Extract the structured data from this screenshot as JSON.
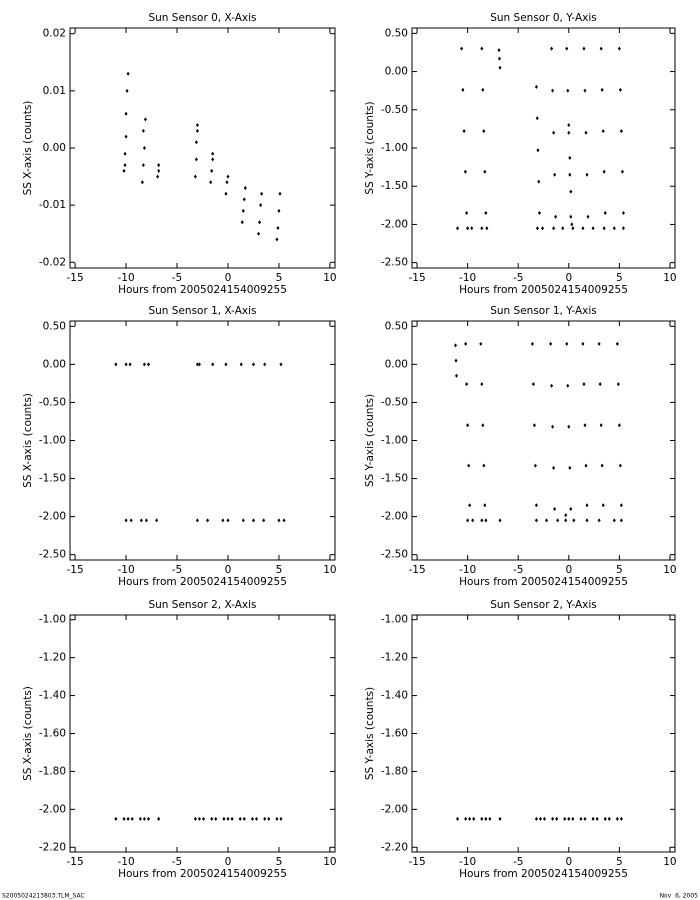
{
  "chart_data": [
    {
      "type": "scatter",
      "title": "Sun Sensor 0, X-Axis",
      "xlabel": "Hours from 2005024154009255",
      "ylabel": "SS X-axis (counts)",
      "color": "#000000",
      "xlim": [
        -15.5,
        10.5
      ],
      "ylim": [
        -0.021,
        0.021
      ],
      "xticks": [
        -15,
        -10,
        -5,
        0,
        5,
        10
      ],
      "yticks": [
        -0.02,
        -0.01,
        {
          "value": 0,
          "label": "0.00"
        },
        0.01,
        0.02
      ],
      "x": [
        -10.2,
        -10.1,
        -10.0,
        -10.0,
        -9.9,
        -9.8,
        -10.1,
        -8.4,
        -8.3,
        -8.2,
        -8.3,
        -8.1,
        -6.9,
        -6.8,
        -6.8,
        -3.2,
        -3.1,
        -3.1,
        -3.0,
        -3.0,
        -1.7,
        -1.6,
        -1.5,
        -1.5,
        -0.2,
        -0.1,
        0.0,
        1.4,
        1.5,
        1.6,
        1.7,
        3.0,
        3.1,
        3.2,
        3.3,
        4.8,
        4.9,
        5.0,
        5.1
      ],
      "y": [
        -0.004,
        -0.001,
        0.002,
        0.006,
        0.01,
        0.013,
        -0.003,
        -0.006,
        -0.003,
        0.0,
        0.003,
        0.005,
        -0.005,
        -0.004,
        -0.003,
        -0.005,
        -0.002,
        0.001,
        0.003,
        0.004,
        -0.006,
        -0.004,
        -0.002,
        -0.001,
        -0.008,
        -0.006,
        -0.005,
        -0.013,
        -0.011,
        -0.009,
        -0.007,
        -0.015,
        -0.013,
        -0.01,
        -0.008,
        -0.016,
        -0.014,
        -0.011,
        -0.008
      ]
    },
    {
      "type": "scatter",
      "title": "Sun Sensor 0, Y-Axis",
      "xlabel": "Hours from 2005024154009255",
      "ylabel": "SS Y-axis (counts)",
      "color": "#000000",
      "xlim": [
        -15.5,
        10.5
      ],
      "ylim": [
        -2.57,
        0.57
      ],
      "xticks": [
        -15,
        -10,
        -5,
        0,
        5,
        10
      ],
      "yticks": [
        {
          "value": -2.5,
          "label": "-2.50"
        },
        {
          "value": -2,
          "label": "-2.00"
        },
        {
          "value": -1.5,
          "label": "-1.50"
        },
        {
          "value": -1,
          "label": "-1.00"
        },
        {
          "value": -0.5,
          "label": "-0.50"
        },
        {
          "value": 0,
          "label": "0.00"
        },
        {
          "value": 0.5,
          "label": "0.50"
        }
      ],
      "x": [
        -10.6,
        -10.47,
        -10.35,
        -10.22,
        -10.1,
        -8.6,
        -8.5,
        -8.4,
        -8.3,
        -8.2,
        -6.9,
        -6.85,
        -6.8,
        -3.2,
        -3.12,
        -3.05,
        -2.97,
        -2.9,
        -1.7,
        -1.6,
        -1.5,
        -1.4,
        -1.3,
        -0.2,
        -0.1,
        0,
        0.1,
        0.2,
        0,
        0.1,
        0.2,
        0.3,
        1.5,
        1.6,
        1.7,
        1.8,
        1.9,
        3.2,
        3.3,
        3.4,
        3.5,
        3.6,
        5.0,
        5.1,
        5.2,
        5.3,
        5.4,
        -11,
        -10,
        -9.6,
        -8.6,
        -8.1,
        -3.1,
        -2.6,
        -1.5,
        -0.6,
        0.4,
        1.4,
        2.4,
        3.5,
        4.5,
        5.4
      ],
      "y": [
        0.3,
        -0.24,
        -0.78,
        -1.31,
        -1.85,
        0.3,
        -0.24,
        -0.78,
        -1.31,
        -1.85,
        0.28,
        0.17,
        0.05,
        -0.2,
        -0.61,
        -1.03,
        -1.44,
        -1.85,
        0.3,
        -0.25,
        -0.8,
        -1.35,
        -1.9,
        0.3,
        -0.25,
        -0.8,
        -1.35,
        -1.9,
        -0.7,
        -1.13,
        -1.57,
        -2.0,
        0.3,
        -0.25,
        -0.8,
        -1.35,
        -1.9,
        0.3,
        -0.24,
        -0.78,
        -1.31,
        -1.85,
        0.3,
        -0.24,
        -0.78,
        -1.31,
        -1.85,
        -2.05,
        -2.05,
        -2.05,
        -2.05,
        -2.05,
        -2.05,
        -2.05,
        -2.05,
        -2.05,
        -2.05,
        -2.05,
        -2.05,
        -2.05,
        -2.05,
        -2.05
      ]
    },
    {
      "type": "scatter",
      "title": "Sun Sensor 1, X-Axis",
      "xlabel": "Hours from 2005024154009255",
      "ylabel": "SS X-axis (counts)",
      "color": "#000000",
      "xlim": [
        -15.5,
        10.5
      ],
      "ylim": [
        -2.57,
        0.57
      ],
      "xticks": [
        -15,
        -10,
        -5,
        0,
        5,
        10
      ],
      "yticks": [
        {
          "value": -2.5,
          "label": "-2.50"
        },
        {
          "value": -2,
          "label": "-2.00"
        },
        {
          "value": -1.5,
          "label": "-1.50"
        },
        {
          "value": -1,
          "label": "-1.00"
        },
        {
          "value": -0.5,
          "label": "-0.50"
        },
        {
          "value": 0,
          "label": "0.00"
        },
        {
          "value": 0.5,
          "label": "0.50"
        }
      ],
      "x": [
        -11,
        -10,
        -9.6,
        -8.2,
        -7.8,
        -3.0,
        -2.8,
        -1.5,
        -0.2,
        1.3,
        2.5,
        3.6,
        5.2,
        -10,
        -9.5,
        -8.5,
        -8,
        -7,
        -3,
        -2,
        -0.5,
        0,
        1.5,
        2.5,
        3.5,
        5,
        5.5
      ],
      "y": [
        0,
        0,
        0,
        0,
        0,
        0,
        0,
        0,
        0,
        0,
        0,
        0,
        0,
        -2.05,
        -2.05,
        -2.05,
        -2.05,
        -2.05,
        -2.05,
        -2.05,
        -2.05,
        -2.05,
        -2.05,
        -2.05,
        -2.05,
        -2.05,
        -2.05
      ]
    },
    {
      "type": "scatter",
      "title": "Sun Sensor 1, Y-Axis",
      "xlabel": "Hours from 2005024154009255",
      "ylabel": "SS Y-axis (counts)",
      "color": "#000000",
      "xlim": [
        -15.5,
        10.5
      ],
      "ylim": [
        -2.57,
        0.57
      ],
      "xticks": [
        -15,
        -10,
        -5,
        0,
        5,
        10
      ],
      "yticks": [
        {
          "value": -2.5,
          "label": "-2.50"
        },
        {
          "value": -2,
          "label": "-2.00"
        },
        {
          "value": -1.5,
          "label": "-1.50"
        },
        {
          "value": -1,
          "label": "-1.00"
        },
        {
          "value": -0.5,
          "label": "-0.50"
        },
        {
          "value": 0,
          "label": "0.00"
        },
        {
          "value": 0.5,
          "label": "0.50"
        }
      ],
      "x": [
        -11.2,
        -11.15,
        -11.1,
        -10.2,
        -10.1,
        -10,
        -9.9,
        -9.8,
        -8.7,
        -8.6,
        -8.5,
        -8.4,
        -8.3,
        -3.6,
        -3.5,
        -3.4,
        -3.3,
        -3.2,
        -1.8,
        -1.7,
        -1.6,
        -1.5,
        -1.4,
        -0.2,
        -0.1,
        0,
        0.1,
        0.2,
        1.4,
        1.5,
        1.6,
        1.7,
        1.8,
        3.0,
        3.1,
        3.2,
        3.3,
        3.4,
        4.8,
        4.9,
        5.0,
        5.1,
        5.2,
        -10,
        -9.5,
        -8.6,
        -8.2,
        -6.8,
        -3.2,
        -2.2,
        -1.1,
        -0.3,
        0.5,
        1.8,
        3.0,
        4.5,
        5.2,
        -0.3
      ],
      "y": [
        0.25,
        0.05,
        -0.15,
        0.27,
        -0.26,
        -0.8,
        -1.33,
        -1.85,
        0.27,
        -0.26,
        -0.8,
        -1.33,
        -1.85,
        0.27,
        -0.26,
        -0.8,
        -1.33,
        -1.85,
        0.27,
        -0.28,
        -0.82,
        -1.36,
        -1.9,
        0.27,
        -0.28,
        -0.82,
        -1.36,
        -1.9,
        0.27,
        -0.26,
        -0.8,
        -1.33,
        -1.85,
        0.27,
        -0.26,
        -0.8,
        -1.33,
        -1.85,
        0.27,
        -0.26,
        -0.8,
        -1.33,
        -1.85,
        -2.05,
        -2.05,
        -2.05,
        -2.05,
        -2.05,
        -2.05,
        -2.05,
        -2.05,
        -2.05,
        -2.05,
        -2.05,
        -2.05,
        -2.05,
        -2.05,
        -1.98
      ]
    },
    {
      "type": "scatter",
      "title": "Sun Sensor 2, X-Axis",
      "xlabel": "Hours from 2005024154009255",
      "ylabel": "SS X-axis (counts)",
      "color": "#000000",
      "xlim": [
        -15.5,
        10.5
      ],
      "ylim": [
        -2.225,
        -0.975
      ],
      "xticks": [
        -15,
        -10,
        -5,
        0,
        5,
        10
      ],
      "yticks": [
        {
          "value": -2.2,
          "label": "-2.20"
        },
        {
          "value": -2,
          "label": "-2.00"
        },
        {
          "value": -1.8,
          "label": "-1.80"
        },
        {
          "value": -1.6,
          "label": "-1.60"
        },
        {
          "value": -1.4,
          "label": "-1.40"
        },
        {
          "value": -1.2,
          "label": "-1.20"
        },
        {
          "value": -1,
          "label": "-1.00"
        }
      ],
      "x": [
        -11,
        -10.2,
        -9.8,
        -9.4,
        -8.6,
        -8.2,
        -7.8,
        -6.8,
        -3.2,
        -2.8,
        -2.4,
        -1.6,
        -1.2,
        -0.4,
        0,
        0.4,
        1.2,
        1.6,
        2.4,
        2.8,
        3.6,
        4.0,
        4.8,
        5.2
      ],
      "y": [
        -2.05,
        -2.05,
        -2.05,
        -2.05,
        -2.05,
        -2.05,
        -2.05,
        -2.05,
        -2.05,
        -2.05,
        -2.05,
        -2.05,
        -2.05,
        -2.05,
        -2.05,
        -2.05,
        -2.05,
        -2.05,
        -2.05,
        -2.05,
        -2.05,
        -2.05,
        -2.05,
        -2.05
      ]
    },
    {
      "type": "scatter",
      "title": "Sun Sensor 2, Y-Axis",
      "xlabel": "Hours from 2005024154009255",
      "ylabel": "SS Y-axis (counts)",
      "color": "#000000",
      "xlim": [
        -15.5,
        10.5
      ],
      "ylim": [
        -2.225,
        -0.975
      ],
      "xticks": [
        -15,
        -10,
        -5,
        0,
        5,
        10
      ],
      "yticks": [
        {
          "value": -2.2,
          "label": "-2.20"
        },
        {
          "value": -2,
          "label": "-2.00"
        },
        {
          "value": -1.8,
          "label": "-1.80"
        },
        {
          "value": -1.6,
          "label": "-1.60"
        },
        {
          "value": -1.4,
          "label": "-1.40"
        },
        {
          "value": -1.2,
          "label": "-1.20"
        },
        {
          "value": -1,
          "label": "-1.00"
        }
      ],
      "x": [
        -11,
        -10.2,
        -9.8,
        -9.4,
        -8.6,
        -8.2,
        -7.8,
        -6.8,
        -3.2,
        -2.8,
        -2.4,
        -1.6,
        -1.2,
        -0.4,
        0,
        0.4,
        1.2,
        1.6,
        2.4,
        2.8,
        3.6,
        4.0,
        4.8,
        5.2
      ],
      "y": [
        -2.05,
        -2.05,
        -2.05,
        -2.05,
        -2.05,
        -2.05,
        -2.05,
        -2.05,
        -2.05,
        -2.05,
        -2.05,
        -2.05,
        -2.05,
        -2.05,
        -2.05,
        -2.05,
        -2.05,
        -2.05,
        -2.05,
        -2.05,
        -2.05,
        -2.05,
        -2.05,
        -2.05
      ]
    }
  ],
  "footer": {
    "file": "S2005024213803.TLM_SAC",
    "date": "Nov  6, 2005"
  }
}
